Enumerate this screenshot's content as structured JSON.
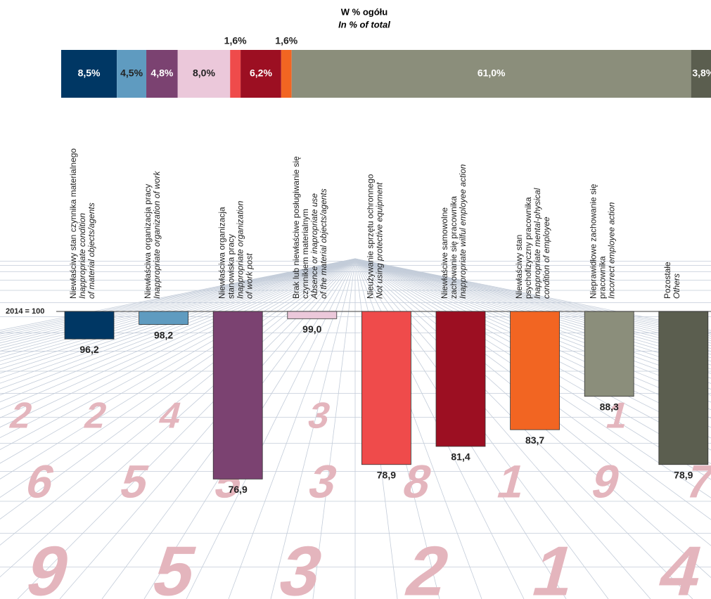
{
  "chart_data": [
    {
      "type": "stacked-bar",
      "title": "W % ogółu",
      "subtitle": "In % of total",
      "values": [
        8.5,
        4.5,
        4.8,
        8.0,
        1.6,
        6.2,
        1.6,
        61.0,
        3.8
      ],
      "value_labels": [
        "8,5%",
        "4,5%",
        "4,8%",
        "8,0%",
        "1,6%",
        "6,2%",
        "1,6%",
        "61,0%",
        "3,8%"
      ],
      "colors": [
        "#003764",
        "#5f9bc0",
        "#7b4271",
        "#ebc8da",
        "#ef4b4b",
        "#9c0f22",
        "#f26522",
        "#8b8e7b",
        "#5b5e4f"
      ],
      "xlim": [
        0,
        100
      ]
    },
    {
      "type": "bar",
      "categories": [
        {
          "pl": [
            "Niewłaściwy stan czynnika materialnego"
          ],
          "en": [
            "Inappropriate condition",
            "of material objects/agents"
          ]
        },
        {
          "pl": [
            "Niewłaściwa organizacja pracy"
          ],
          "en": [
            "Inappropriate organization of work"
          ]
        },
        {
          "pl": [
            "Niewłaściwa organizacja",
            "stanowiska pracy"
          ],
          "en": [
            "Inappropriate organization",
            "of work post"
          ]
        },
        {
          "pl": [
            "Brak lub niewłaściwe posługiwanie się",
            "czynnikiem materialnym"
          ],
          "en": [
            "Absence or inapropriate use",
            "of the material objects/agents"
          ]
        },
        {
          "pl": [
            "Nieużywanie sprzętu ochronnego"
          ],
          "en": [
            "Not using protective equipment"
          ]
        },
        {
          "pl": [
            "Niewłaściwe samowolne",
            "zachowanie się pracownika"
          ],
          "en": [
            "Inappropriate wilful employee action"
          ]
        },
        {
          "pl": [
            "Niewłaściwy stan",
            "psychofizyczny pracownika"
          ],
          "en": [
            "Inappropriate mental-physical",
            "condition of employee"
          ]
        },
        {
          "pl": [
            "Nieprawidłowe zachowanie się",
            "pracownika"
          ],
          "en": [
            "Incorrect employee action"
          ]
        },
        {
          "pl": [
            "Pozostałe"
          ],
          "en": [
            "Others"
          ]
        }
      ],
      "values": [
        96.2,
        98.2,
        76.9,
        99.0,
        78.9,
        81.4,
        83.7,
        88.3,
        78.9
      ],
      "value_labels": [
        "96,2",
        "98,2",
        "76,9",
        "99,0",
        "78,9",
        "81,4",
        "83,7",
        "88,3",
        "78,9"
      ],
      "colors": [
        "#003764",
        "#5f9bc0",
        "#7b4271",
        "#ebc8da",
        "#ef4b4b",
        "#9c0f22",
        "#f26522",
        "#8b8e7b",
        "#5b5e4f"
      ],
      "ylim": [
        75,
        100
      ],
      "yticks": [
        {
          "value": 100,
          "label": "2014 = 100"
        }
      ]
    }
  ],
  "background_digits": [
    "2241336111",
    "65538197",
    "953214"
  ]
}
